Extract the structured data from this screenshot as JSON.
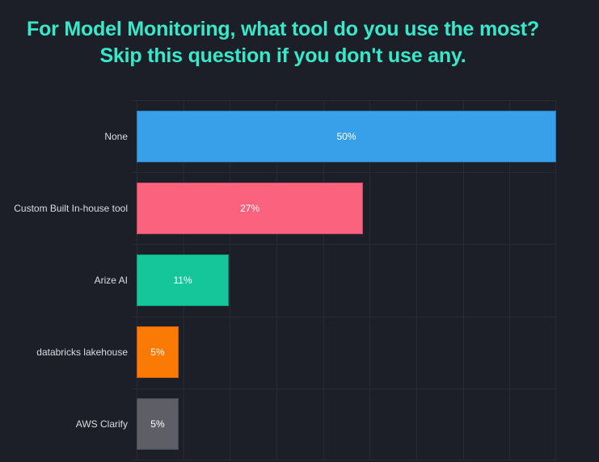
{
  "title": {
    "line1": "For Model Monitoring, what tool do you use the most?",
    "line2": "Skip this question if you don't use any."
  },
  "colors": {
    "background": "#1c1f28",
    "title": "#37e8ca",
    "gridline": "#282b35",
    "category_label": "#dcdde1",
    "value_label": "#ffffff"
  },
  "chart_data": {
    "type": "bar",
    "orientation": "horizontal",
    "title": "For Model Monitoring, what tool do you use the most? Skip this question if you don't use any.",
    "categories": [
      "None",
      "Custom Built In-house tool",
      "Arize AI",
      "databricks lakehouse",
      "AWS Clarify"
    ],
    "values": [
      50,
      27,
      11,
      5,
      5
    ],
    "value_labels": [
      "50%",
      "27%",
      "11%",
      "5%",
      "5%"
    ],
    "bar_colors": [
      "#38a0e9",
      "#fa627e",
      "#15c69b",
      "#fb7a05",
      "#5e5f66"
    ],
    "xlabel": "",
    "ylabel": "",
    "xlim": [
      0,
      50
    ],
    "x_grid_intervals": 9,
    "grid": true,
    "legend": false,
    "value_label_position": "center"
  }
}
